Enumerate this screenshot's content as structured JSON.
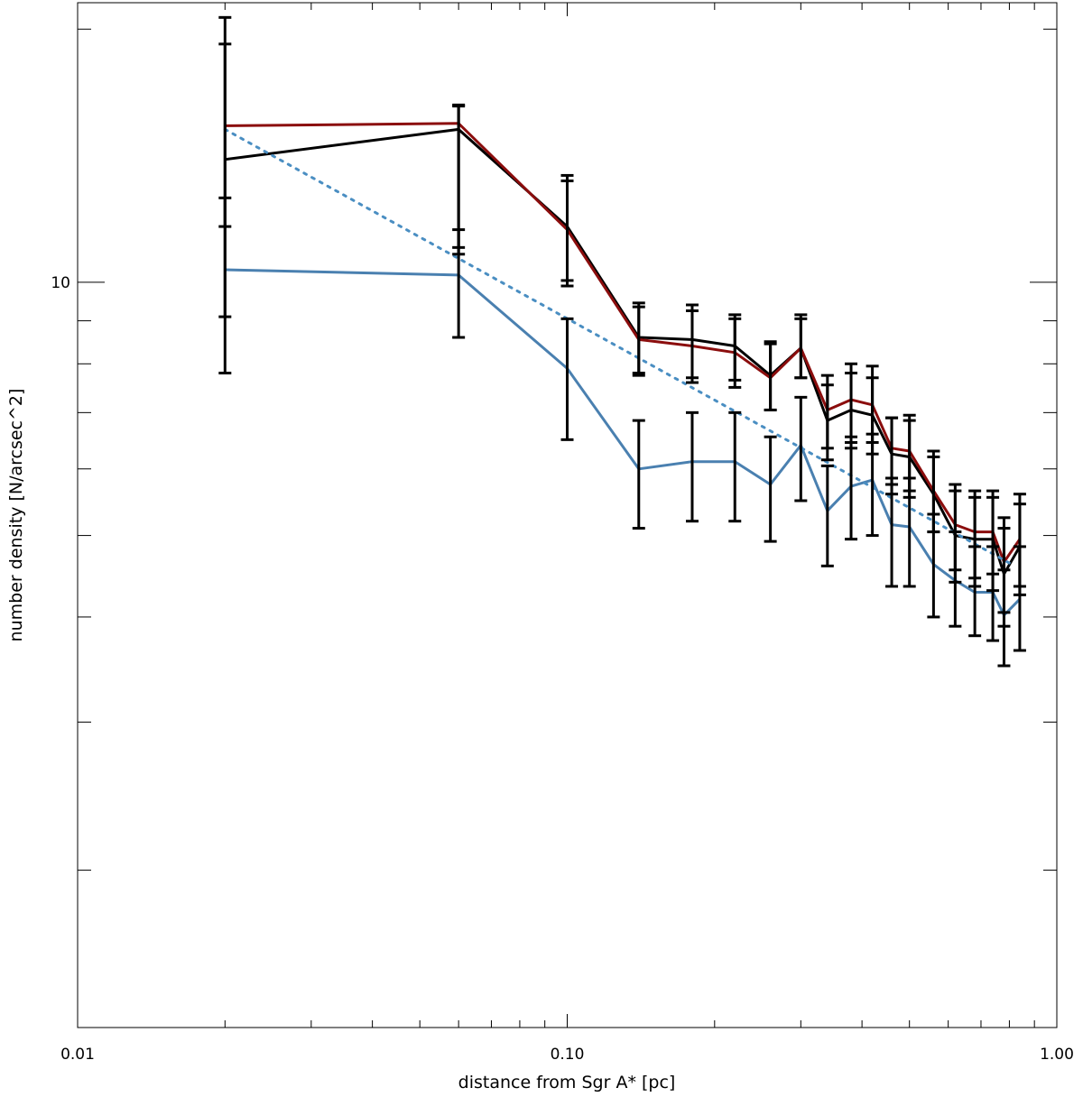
{
  "chart_data": {
    "type": "line",
    "xlabel": "distance from Sgr A* [pc]",
    "ylabel": "number density [N/arcsec^2]",
    "x_scale": "log",
    "y_scale": "log",
    "xlim": [
      0.01,
      1.0
    ],
    "ylim": [
      1.3,
      21.5
    ],
    "x_tick_labels": [
      {
        "value": 0.01,
        "label": "0.01"
      },
      {
        "value": 0.1,
        "label": "0.10"
      },
      {
        "value": 1.0,
        "label": "1.00"
      }
    ],
    "y_tick_labels": [
      {
        "value": 10,
        "label": "10"
      }
    ],
    "x": [
      0.02,
      0.06,
      0.1,
      0.14,
      0.18,
      0.22,
      0.26,
      0.3,
      0.34,
      0.38,
      0.42,
      0.46,
      0.5,
      0.56,
      0.62,
      0.68,
      0.74,
      0.78,
      0.84
    ],
    "series": [
      {
        "color": "#000000",
        "values": [
          14.0,
          15.2,
          11.65,
          8.6,
          8.55,
          8.4,
          7.75,
          8.35,
          6.85,
          7.05,
          6.95,
          6.25,
          6.2,
          5.6,
          5.0,
          4.95,
          4.95,
          4.5,
          4.85
        ],
        "err_low": [
          9.1,
          10.8,
          9.9,
          7.75,
          7.7,
          7.65,
          7.05,
          7.7,
          6.15,
          6.35,
          6.25,
          5.6,
          5.55,
          5.05,
          4.4,
          4.35,
          4.3,
          3.9,
          4.25
        ],
        "err_high": [
          19.2,
          16.2,
          13.4,
          9.45,
          9.4,
          9.15,
          8.45,
          9.05,
          7.55,
          7.8,
          7.7,
          6.9,
          6.85,
          6.2,
          5.65,
          5.55,
          5.55,
          5.1,
          5.45
        ]
      },
      {
        "color": "#8b0d0d",
        "values": [
          15.35,
          15.45,
          11.55,
          8.55,
          8.4,
          8.25,
          7.7,
          8.35,
          7.05,
          7.25,
          7.15,
          6.35,
          6.3,
          5.65,
          5.15,
          5.05,
          5.05,
          4.65,
          4.95
        ],
        "err_low": [
          11.65,
          11.0,
          10.05,
          7.8,
          7.6,
          7.5,
          7.05,
          7.7,
          6.35,
          6.55,
          6.45,
          5.75,
          5.65,
          5.05,
          4.55,
          4.45,
          4.5,
          4.05,
          4.35
        ],
        "err_high": [
          20.65,
          16.25,
          13.2,
          9.35,
          9.25,
          9.05,
          8.5,
          9.15,
          7.75,
          8.0,
          7.95,
          6.9,
          6.95,
          6.3,
          5.75,
          5.65,
          5.65,
          5.25,
          5.6
        ]
      },
      {
        "color": "#4a80b0",
        "values": [
          10.35,
          10.2,
          7.9,
          6.0,
          6.12,
          6.12,
          5.75,
          6.4,
          5.35,
          5.72,
          5.82,
          5.15,
          5.12,
          4.62,
          4.42,
          4.28,
          4.28,
          4.02,
          4.2
        ],
        "err_low": [
          7.8,
          8.6,
          6.5,
          5.1,
          5.2,
          5.2,
          4.92,
          5.5,
          4.6,
          4.95,
          5.0,
          4.35,
          4.35,
          4.0,
          3.9,
          3.8,
          3.75,
          3.5,
          3.65
        ],
        "err_high": [
          12.6,
          11.55,
          9.05,
          6.85,
          7.0,
          7.0,
          6.55,
          7.3,
          6.05,
          6.45,
          6.6,
          5.85,
          5.85,
          5.3,
          5.05,
          4.85,
          4.85,
          4.55,
          4.85
        ]
      },
      {
        "color": "#4a8ec2",
        "style": "dotted",
        "x": [
          0.02,
          0.82
        ],
        "values": [
          15.2,
          4.6
        ]
      }
    ]
  }
}
